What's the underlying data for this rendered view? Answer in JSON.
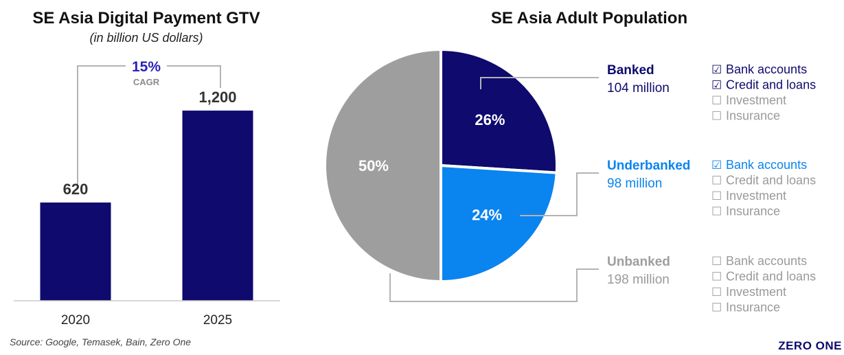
{
  "colors": {
    "banked": "#0f0a6e",
    "underbanked": "#0a84ef",
    "unbanked": "#9e9e9e",
    "cagr": "#2a22b8",
    "dark_text": "#333333",
    "light_text": "#9a9a9a",
    "connector": "#b3b3b3"
  },
  "chart_data": [
    {
      "type": "bar",
      "title": "SE Asia Digital Payment GTV",
      "subtitle": "(in billion US dollars)",
      "categories": [
        "2020",
        "2025"
      ],
      "values": [
        620,
        1200
      ],
      "value_labels": [
        "620",
        "1,200"
      ],
      "ylim": [
        0,
        1300
      ],
      "annotation": {
        "value": "15%",
        "label": "CAGR"
      },
      "source": "Source: Google, Temasek, Bain, Zero One"
    },
    {
      "type": "pie",
      "title": "SE Asia Adult Population",
      "slices": [
        {
          "name": "Banked",
          "value": 26,
          "label": "26%",
          "count": "104 million",
          "services": [
            {
              "name": "Bank accounts",
              "checked": true,
              "mark": "☑"
            },
            {
              "name": "Credit and loans",
              "checked": true,
              "mark": "☑"
            },
            {
              "name": "Investment",
              "checked": false,
              "mark": "☐"
            },
            {
              "name": "Insurance",
              "checked": false,
              "mark": "☐"
            }
          ]
        },
        {
          "name": "Underbanked",
          "value": 24,
          "label": "24%",
          "count": "98 million",
          "services": [
            {
              "name": "Bank accounts",
              "checked": true,
              "mark": "☑"
            },
            {
              "name": "Credit and loans",
              "checked": false,
              "mark": "☐"
            },
            {
              "name": "Investment",
              "checked": false,
              "mark": "☐"
            },
            {
              "name": "Insurance",
              "checked": false,
              "mark": "☐"
            }
          ]
        },
        {
          "name": "Unbanked",
          "value": 50,
          "label": "50%",
          "count": "198 million",
          "services": [
            {
              "name": "Bank accounts",
              "checked": false,
              "mark": "☐"
            },
            {
              "name": "Credit and loans",
              "checked": false,
              "mark": "☐"
            },
            {
              "name": "Investment",
              "checked": false,
              "mark": "☐"
            },
            {
              "name": "Insurance",
              "checked": false,
              "mark": "☐"
            }
          ]
        }
      ]
    }
  ],
  "logo": {
    "text": "ZERO ONE"
  }
}
